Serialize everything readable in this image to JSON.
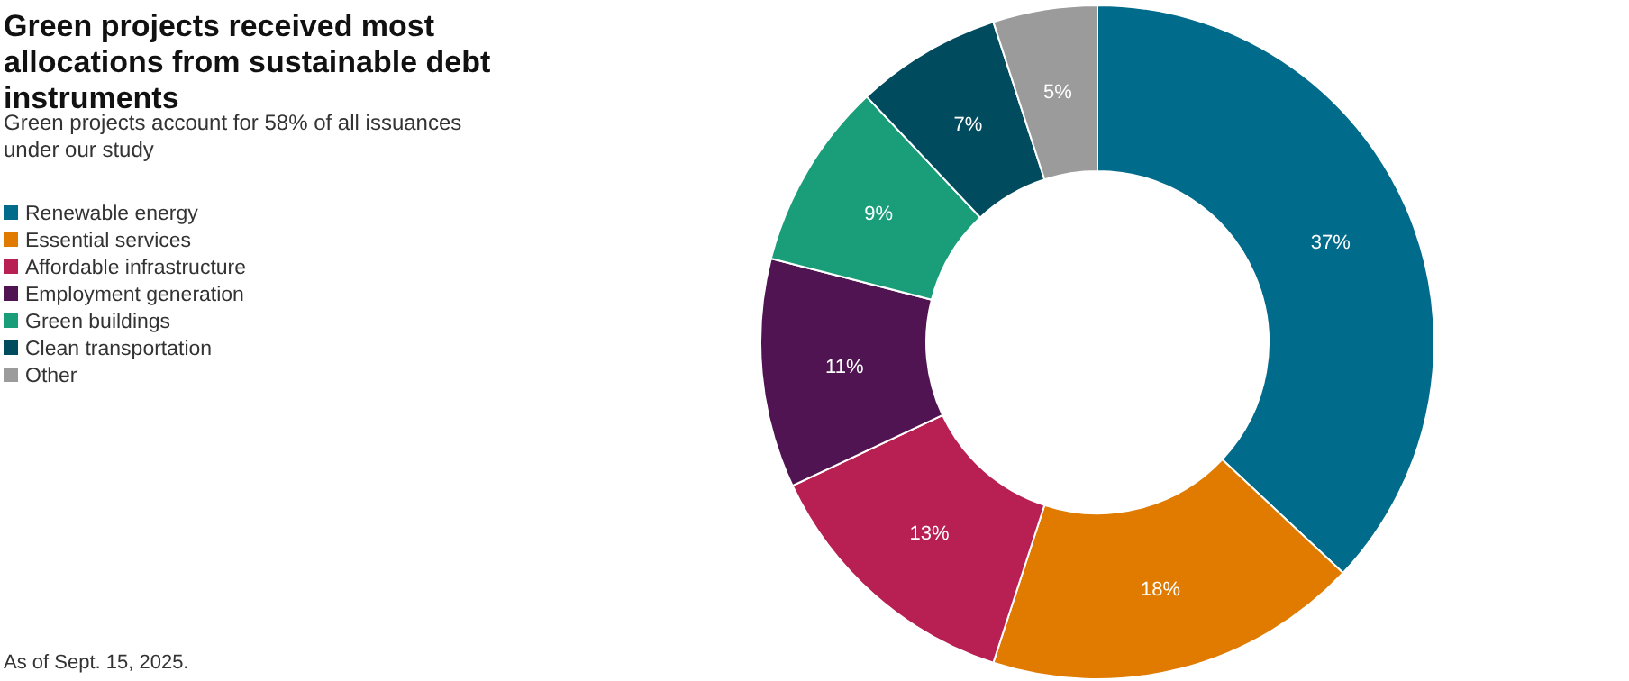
{
  "chart_data": {
    "type": "donut",
    "title": "Green projects received most allocations from sustainable debt instruments",
    "subtitle": "Green projects account for 58% of all issuances under our study",
    "categories": [
      "Renewable energy",
      "Essential services",
      "Affordable infrastructure",
      "Employment generation",
      "Green buildings",
      "Clean transportation",
      "Other"
    ],
    "values": [
      37,
      18,
      13,
      11,
      9,
      7,
      5
    ],
    "value_labels": [
      "37%",
      "18%",
      "13%",
      "11%",
      "9%",
      "7%",
      "5%"
    ],
    "colors": [
      "#006b8a",
      "#e07b00",
      "#b81f52",
      "#4f1451",
      "#1a9e7a",
      "#004c5e",
      "#9b9b9b"
    ],
    "legend": "left",
    "annotations": [
      "As of Sept. 15, 2025."
    ]
  }
}
